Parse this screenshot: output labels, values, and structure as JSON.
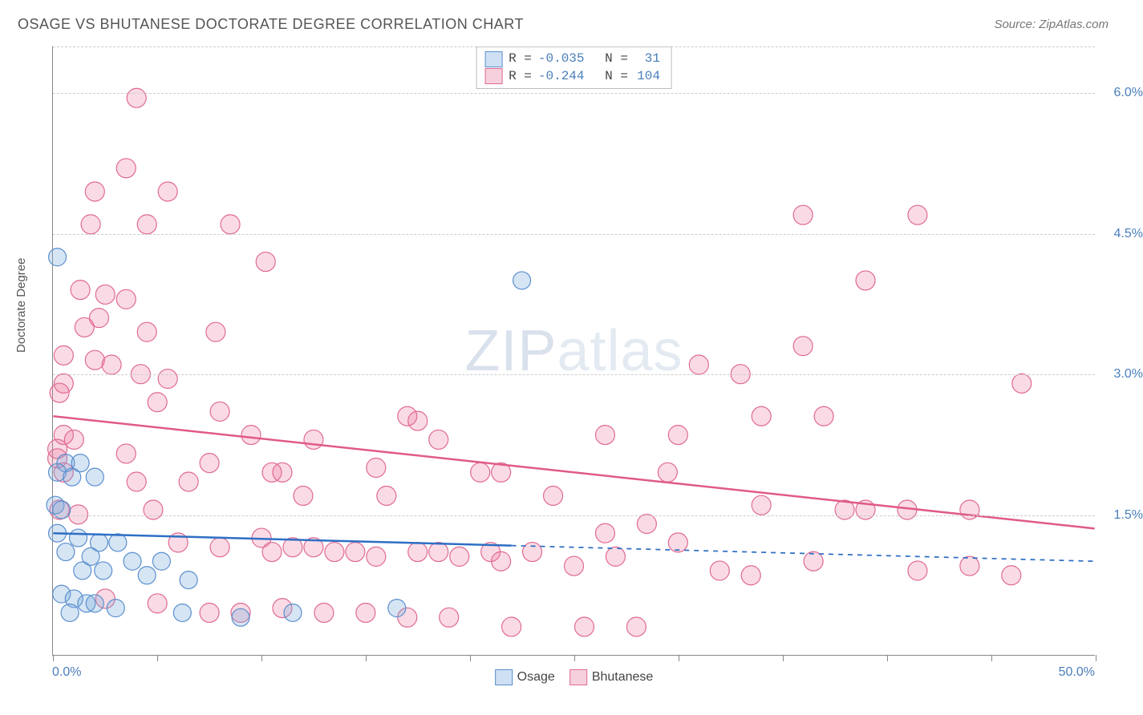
{
  "title": "OSAGE VS BHUTANESE DOCTORATE DEGREE CORRELATION CHART",
  "source": "Source: ZipAtlas.com",
  "y_axis_title": "Doctorate Degree",
  "watermark_left": "ZIP",
  "watermark_right": "atlas",
  "chart": {
    "type": "scatter",
    "x_range": [
      0.0,
      50.0
    ],
    "y_range": [
      0.0,
      6.5
    ],
    "grid_y_values": [
      1.5,
      3.0,
      4.5,
      6.0
    ],
    "grid_y_labels": [
      "1.5%",
      "3.0%",
      "4.5%",
      "6.0%"
    ],
    "grid_color": "#cccccc",
    "x_ticks_at": [
      0,
      5,
      10,
      15,
      20,
      25,
      30,
      35,
      40,
      45,
      50
    ],
    "x_labels": {
      "0": "0.0%",
      "50": "50.0%"
    },
    "axis_color": "#888888",
    "right_label_color": "#4a7ebb",
    "background_color": "#ffffff"
  },
  "series": {
    "osage": {
      "label": "Osage",
      "R": "-0.035",
      "N": "31",
      "fill": "rgba(120,170,220,0.30)",
      "stroke": "#5a8fce",
      "swatch_fill": "#cfe0f4",
      "swatch_border": "#5a8fce",
      "marker_r": 11,
      "regression": {
        "y_at_x0": 1.3,
        "y_at_x50": 1.0,
        "solid_until_x": 22.0,
        "color": "#2e6fc4",
        "width": 2.5
      },
      "points": [
        [
          0.2,
          4.25
        ],
        [
          22.5,
          4.0
        ],
        [
          0.6,
          2.05
        ],
        [
          1.3,
          2.05
        ],
        [
          0.2,
          1.95
        ],
        [
          0.9,
          1.9
        ],
        [
          2.0,
          1.9
        ],
        [
          0.1,
          1.6
        ],
        [
          0.4,
          1.55
        ],
        [
          0.2,
          1.3
        ],
        [
          1.2,
          1.25
        ],
        [
          2.2,
          1.2
        ],
        [
          3.1,
          1.2
        ],
        [
          0.6,
          1.1
        ],
        [
          1.8,
          1.05
        ],
        [
          3.8,
          1.0
        ],
        [
          5.2,
          1.0
        ],
        [
          1.4,
          0.9
        ],
        [
          2.4,
          0.9
        ],
        [
          4.5,
          0.85
        ],
        [
          6.5,
          0.8
        ],
        [
          0.4,
          0.65
        ],
        [
          1.0,
          0.6
        ],
        [
          1.6,
          0.55
        ],
        [
          2.0,
          0.55
        ],
        [
          3.0,
          0.5
        ],
        [
          0.8,
          0.45
        ],
        [
          6.2,
          0.45
        ],
        [
          9.0,
          0.4
        ],
        [
          11.5,
          0.45
        ],
        [
          16.5,
          0.5
        ]
      ]
    },
    "bhutanese": {
      "label": "Bhutanese",
      "R": "-0.244",
      "N": "104",
      "fill": "rgba(235,110,150,0.25)",
      "stroke": "#e06a92",
      "swatch_fill": "#f6d1dd",
      "swatch_border": "#e06a92",
      "marker_r": 12,
      "regression": {
        "y_at_x0": 2.55,
        "y_at_x50": 1.35,
        "solid_until_x": 50.0,
        "color": "#e05a88",
        "width": 2.5
      },
      "points": [
        [
          4.0,
          5.95
        ],
        [
          3.5,
          5.2
        ],
        [
          2.0,
          4.95
        ],
        [
          5.5,
          4.95
        ],
        [
          1.8,
          4.6
        ],
        [
          4.5,
          4.6
        ],
        [
          8.5,
          4.6
        ],
        [
          36.0,
          4.7
        ],
        [
          41.5,
          4.7
        ],
        [
          10.2,
          4.2
        ],
        [
          39.0,
          4.0
        ],
        [
          1.3,
          3.9
        ],
        [
          2.5,
          3.85
        ],
        [
          3.5,
          3.8
        ],
        [
          2.2,
          3.6
        ],
        [
          4.5,
          3.45
        ],
        [
          1.5,
          3.5
        ],
        [
          7.8,
          3.45
        ],
        [
          36.0,
          3.3
        ],
        [
          0.5,
          3.2
        ],
        [
          2.0,
          3.15
        ],
        [
          2.8,
          3.1
        ],
        [
          31.0,
          3.1
        ],
        [
          33.0,
          3.0
        ],
        [
          0.5,
          2.9
        ],
        [
          4.2,
          3.0
        ],
        [
          5.5,
          2.95
        ],
        [
          46.5,
          2.9
        ],
        [
          0.3,
          2.8
        ],
        [
          5.0,
          2.7
        ],
        [
          8.0,
          2.6
        ],
        [
          17.0,
          2.55
        ],
        [
          17.5,
          2.5
        ],
        [
          34.0,
          2.55
        ],
        [
          37.0,
          2.55
        ],
        [
          0.5,
          2.35
        ],
        [
          1.0,
          2.3
        ],
        [
          9.5,
          2.35
        ],
        [
          12.5,
          2.3
        ],
        [
          18.5,
          2.3
        ],
        [
          26.5,
          2.35
        ],
        [
          30.0,
          2.35
        ],
        [
          0.2,
          2.2
        ],
        [
          0.2,
          2.1
        ],
        [
          0.5,
          1.95
        ],
        [
          3.5,
          2.15
        ],
        [
          7.5,
          2.05
        ],
        [
          10.5,
          1.95
        ],
        [
          11.0,
          1.95
        ],
        [
          15.5,
          2.0
        ],
        [
          20.5,
          1.95
        ],
        [
          21.5,
          1.95
        ],
        [
          29.5,
          1.95
        ],
        [
          34.0,
          1.6
        ],
        [
          38.0,
          1.55
        ],
        [
          41.0,
          1.55
        ],
        [
          44.0,
          1.55
        ],
        [
          0.3,
          1.55
        ],
        [
          1.2,
          1.5
        ],
        [
          4.8,
          1.55
        ],
        [
          6.0,
          1.2
        ],
        [
          8.0,
          1.15
        ],
        [
          10.0,
          1.25
        ],
        [
          10.5,
          1.1
        ],
        [
          11.5,
          1.15
        ],
        [
          12.5,
          1.15
        ],
        [
          13.5,
          1.1
        ],
        [
          14.5,
          1.1
        ],
        [
          15.5,
          1.05
        ],
        [
          17.5,
          1.1
        ],
        [
          18.5,
          1.1
        ],
        [
          19.5,
          1.05
        ],
        [
          21.0,
          1.1
        ],
        [
          21.5,
          1.0
        ],
        [
          23.0,
          1.1
        ],
        [
          25.0,
          0.95
        ],
        [
          27.0,
          1.05
        ],
        [
          28.5,
          1.4
        ],
        [
          30.0,
          1.2
        ],
        [
          32.0,
          0.9
        ],
        [
          33.5,
          0.85
        ],
        [
          36.5,
          1.0
        ],
        [
          39.0,
          1.55
        ],
        [
          41.5,
          0.9
        ],
        [
          44.0,
          0.95
        ],
        [
          46.0,
          0.85
        ],
        [
          2.5,
          0.6
        ],
        [
          5.0,
          0.55
        ],
        [
          7.5,
          0.45
        ],
        [
          9.0,
          0.45
        ],
        [
          11.0,
          0.5
        ],
        [
          13.0,
          0.45
        ],
        [
          15.0,
          0.45
        ],
        [
          17.0,
          0.4
        ],
        [
          19.0,
          0.4
        ],
        [
          22.0,
          0.3
        ],
        [
          25.5,
          0.3
        ],
        [
          28.0,
          0.3
        ],
        [
          4.0,
          1.85
        ],
        [
          6.5,
          1.85
        ],
        [
          12.0,
          1.7
        ],
        [
          16.0,
          1.7
        ],
        [
          24.0,
          1.7
        ],
        [
          26.5,
          1.3
        ]
      ]
    }
  },
  "stat_legend": {
    "r_label": "R =",
    "n_label": "N ="
  }
}
